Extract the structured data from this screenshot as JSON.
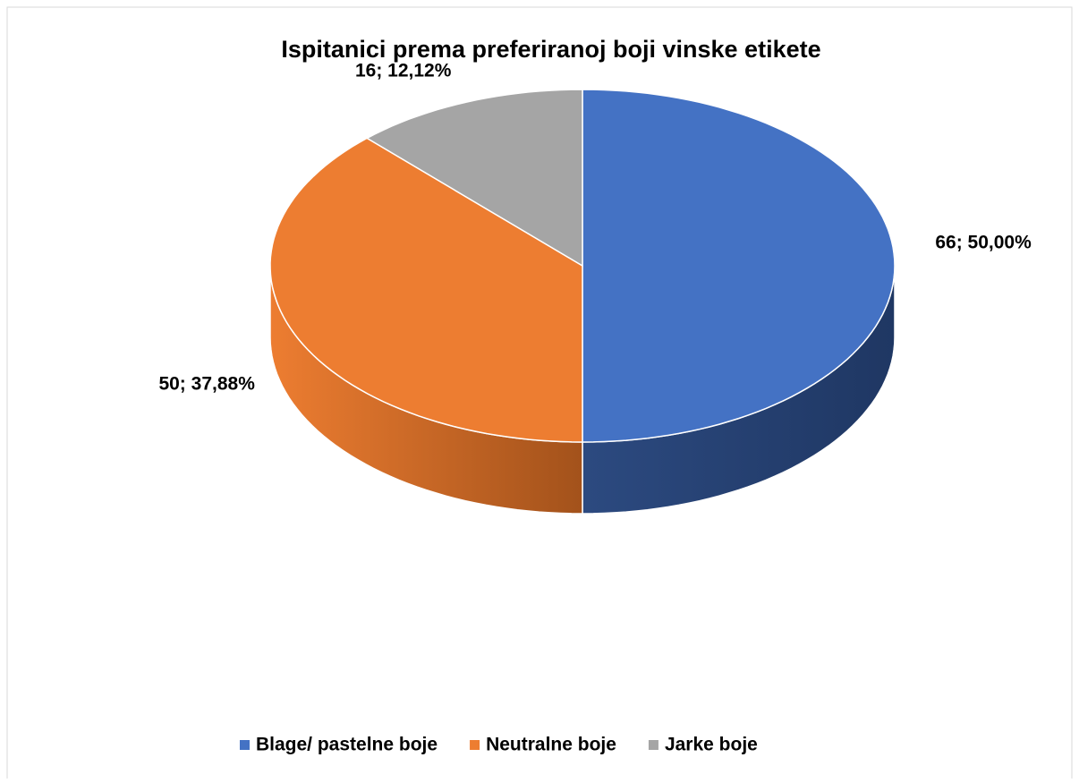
{
  "chart_data": {
    "type": "pie",
    "title": "Ispitanici prema preferiranoj boji vinske etikete",
    "categories": [
      "Blage/ pastelne boje",
      "Neutralne boje",
      "Jarke boje"
    ],
    "values": [
      66,
      50,
      16
    ],
    "value_labels": [
      "66; 50,00%",
      "50; 37,88%",
      "16; 12,12%"
    ],
    "colors": [
      "#4472c4",
      "#ed7d31",
      "#a5a5a5"
    ],
    "side_colors": [
      "#1f3763",
      "#a3521b",
      "#6e6e6e"
    ],
    "legend": "bottom"
  }
}
